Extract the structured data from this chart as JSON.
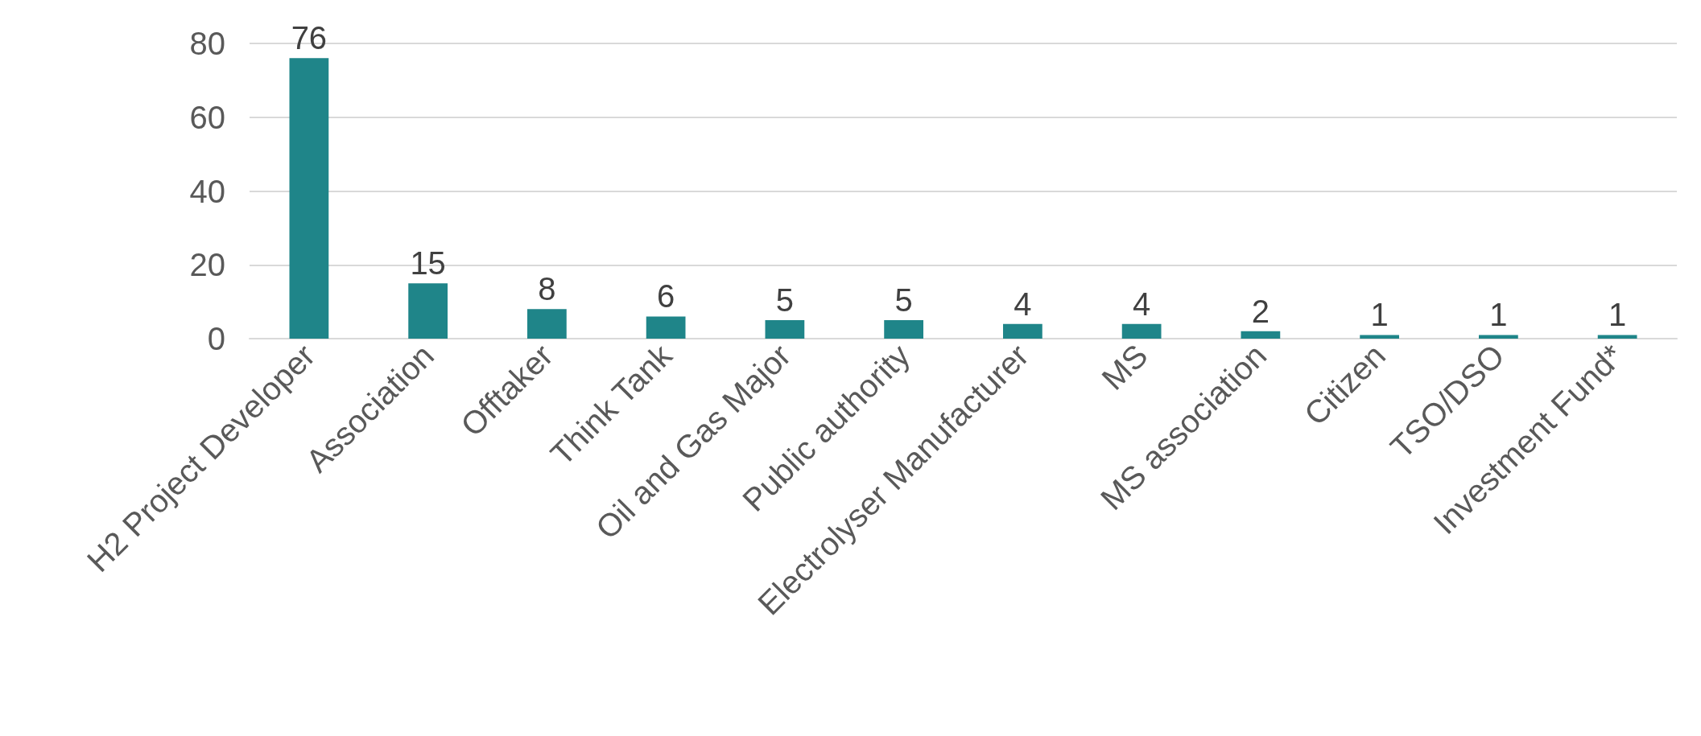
{
  "chart_data": {
    "type": "bar",
    "categories": [
      "H2 Project Developer",
      "Association",
      "Offtaker",
      "Think Tank",
      "Oil and Gas Major",
      "Public authority",
      "Electrolyser Manufacturer",
      "MS",
      "MS association",
      "Citizen",
      "TSO/DSO",
      "Investment Fund*"
    ],
    "values": [
      76,
      15,
      8,
      6,
      5,
      5,
      4,
      4,
      2,
      1,
      1,
      1
    ],
    "color": "#1f8589",
    "ylim": [
      0,
      80
    ],
    "yticks": [
      0,
      20,
      40,
      60,
      80
    ],
    "grid": "y",
    "data_labels": true
  }
}
